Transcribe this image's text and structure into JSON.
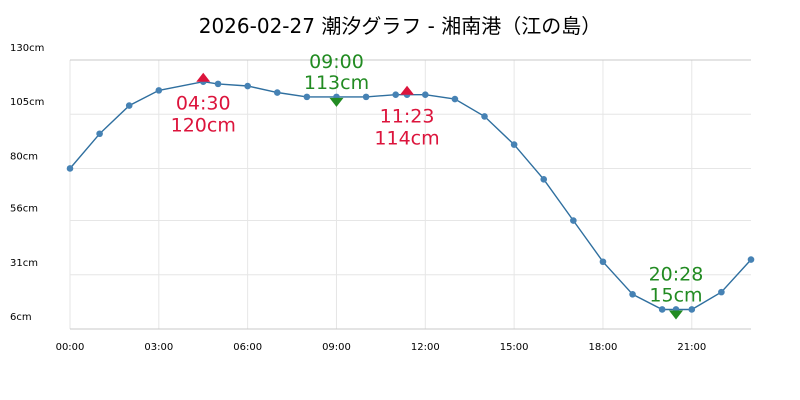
{
  "chart_data": {
    "type": "line",
    "title": "2026-02-27 潮汐グラフ - 湘南港（江の島）",
    "xlabel": "",
    "ylabel": "",
    "x_ticks": [
      "00:00",
      "03:00",
      "06:00",
      "09:00",
      "12:00",
      "15:00",
      "18:00",
      "21:00"
    ],
    "y_ticks": [
      "6cm",
      "31cm",
      "56cm",
      "80cm",
      "105cm",
      "130cm"
    ],
    "xlim": [
      0,
      23
    ],
    "ylim": [
      6,
      130
    ],
    "grid": true,
    "legend": "none",
    "colors": {
      "line": "#2f6f9f",
      "point": "#4682b4",
      "high": "#dc143c",
      "low": "#228b22"
    },
    "series": [
      {
        "values": [
          {
            "x": "00:00",
            "y": 80
          },
          {
            "x": "01:00",
            "y": 96
          },
          {
            "x": "02:00",
            "y": 109
          },
          {
            "x": "03:00",
            "y": 116
          },
          {
            "x": "04:30",
            "y": 120
          },
          {
            "x": "05:00",
            "y": 119
          },
          {
            "x": "06:00",
            "y": 118
          },
          {
            "x": "07:00",
            "y": 115
          },
          {
            "x": "08:00",
            "y": 113
          },
          {
            "x": "09:00",
            "y": 113
          },
          {
            "x": "10:00",
            "y": 113
          },
          {
            "x": "11:00",
            "y": 114
          },
          {
            "x": "11:23",
            "y": 114
          },
          {
            "x": "12:00",
            "y": 114
          },
          {
            "x": "13:00",
            "y": 112
          },
          {
            "x": "14:00",
            "y": 104
          },
          {
            "x": "15:00",
            "y": 91
          },
          {
            "x": "16:00",
            "y": 75
          },
          {
            "x": "17:00",
            "y": 56
          },
          {
            "x": "18:00",
            "y": 37
          },
          {
            "x": "19:00",
            "y": 22
          },
          {
            "x": "20:00",
            "y": 15
          },
          {
            "x": "20:28",
            "y": 15
          },
          {
            "x": "21:00",
            "y": 15
          },
          {
            "x": "22:00",
            "y": 23
          },
          {
            "x": "23:00",
            "y": 38
          }
        ]
      }
    ],
    "annotations": [
      {
        "kind": "high",
        "time": "04:30",
        "height": "120cm",
        "label_position": "below"
      },
      {
        "kind": "low",
        "time": "09:00",
        "height": "113cm",
        "label_position": "above"
      },
      {
        "kind": "high",
        "time": "11:23",
        "height": "114cm",
        "label_position": "below"
      },
      {
        "kind": "low",
        "time": "20:28",
        "height": "15cm",
        "label_position": "above"
      }
    ]
  }
}
